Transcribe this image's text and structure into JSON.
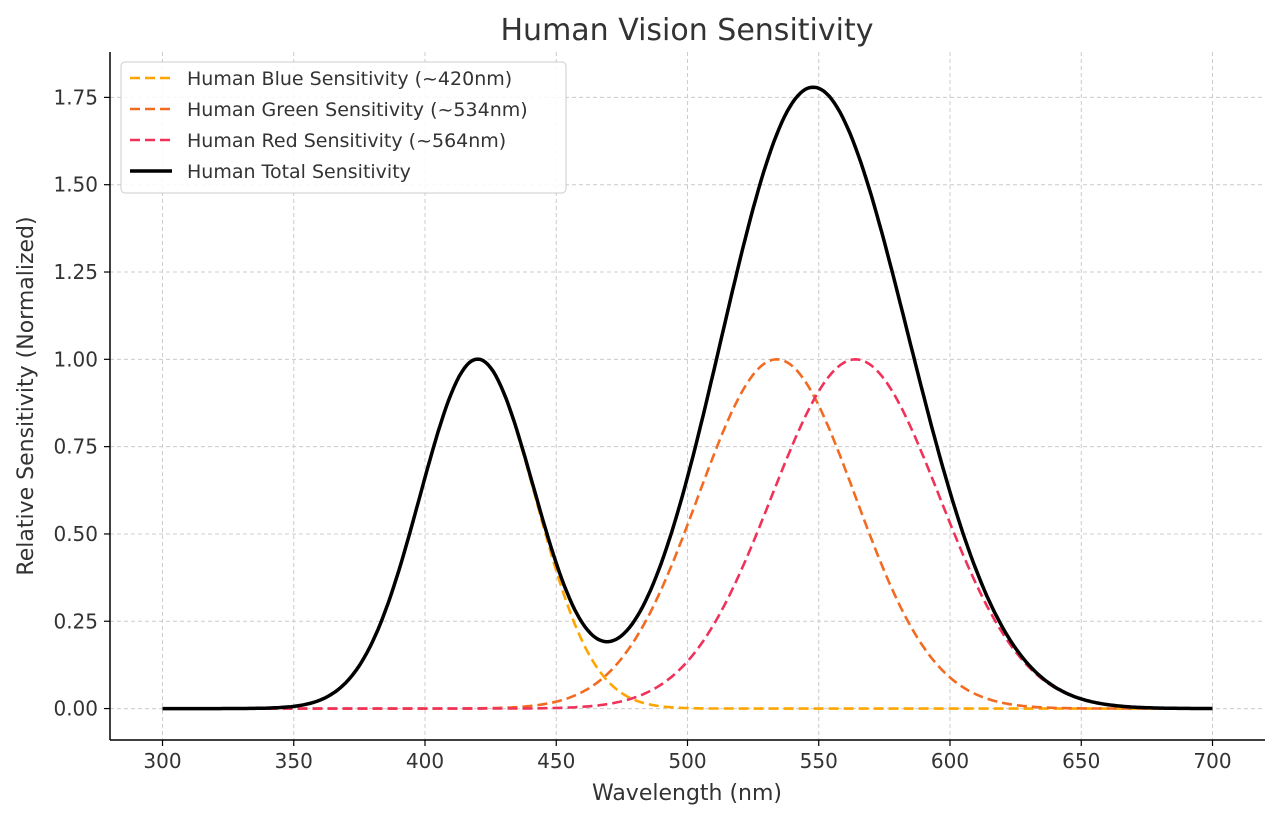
{
  "chart_data": {
    "type": "line",
    "title": "Human Vision Sensitivity",
    "xlabel": "Wavelength (nm)",
    "ylabel": "Relative Sensitivity (Normalized)",
    "xlim": [
      280,
      720
    ],
    "ylim": [
      -0.09,
      1.88
    ],
    "x_range": [
      300,
      700
    ],
    "xticks": [
      300,
      350,
      400,
      450,
      500,
      550,
      600,
      650,
      700
    ],
    "yticks": [
      0.0,
      0.25,
      0.5,
      0.75,
      1.0,
      1.25,
      1.5,
      1.75
    ],
    "ytick_labels": [
      "0.00",
      "0.25",
      "0.50",
      "0.75",
      "1.00",
      "1.25",
      "1.50",
      "1.75"
    ],
    "grid": true,
    "legend_position": "top-left",
    "series": [
      {
        "name": "Human Blue Sensitivity (~420nm)",
        "model": "gaussian",
        "peak_nm": 420,
        "sigma_nm": 22,
        "amplitude": 1.0,
        "color": "#FFA500",
        "style": "dashed"
      },
      {
        "name": "Human Green Sensitivity (~534nm)",
        "model": "gaussian",
        "peak_nm": 534,
        "sigma_nm": 30,
        "amplitude": 1.0,
        "color": "#F26B21",
        "style": "dashed"
      },
      {
        "name": "Human Red Sensitivity (~564nm)",
        "model": "gaussian",
        "peak_nm": 564,
        "sigma_nm": 32,
        "amplitude": 1.0,
        "color": "#F0325A",
        "style": "dashed"
      },
      {
        "name": "Human Total Sensitivity",
        "model": "sum",
        "color": "#000000",
        "style": "solid"
      }
    ]
  }
}
